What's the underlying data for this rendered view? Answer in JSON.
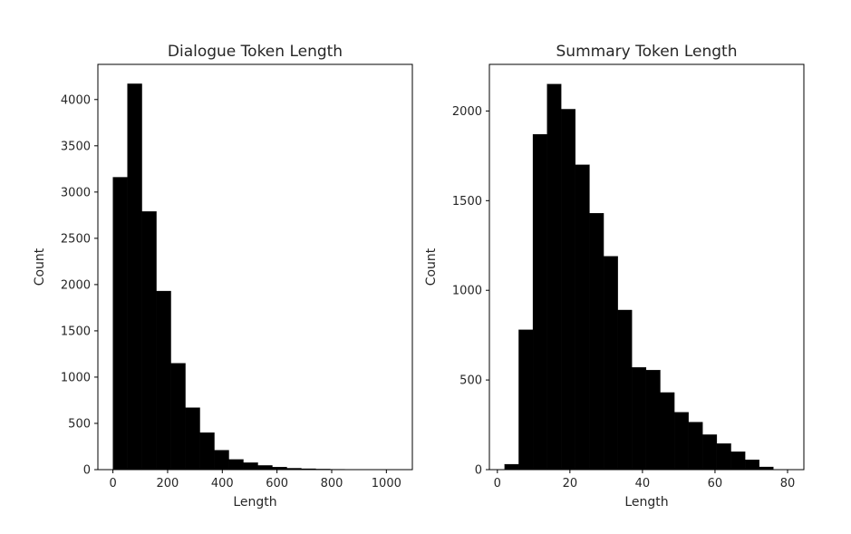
{
  "chart_data": [
    {
      "type": "bar",
      "title": "Dialogue Token Length",
      "xlabel": "Length",
      "ylabel": "Count",
      "xlim": [
        -55,
        1095
      ],
      "ylim": [
        0,
        4380
      ],
      "xticks": [
        0,
        200,
        400,
        600,
        800,
        1000
      ],
      "yticks": [
        0,
        500,
        1000,
        1500,
        2000,
        2500,
        3000,
        3500,
        4000
      ],
      "bin_start": 0,
      "bin_width": 53,
      "values": [
        3160,
        4170,
        2790,
        1930,
        1150,
        670,
        400,
        210,
        110,
        75,
        45,
        28,
        15,
        10,
        6,
        4,
        3,
        2,
        2,
        1
      ],
      "bar_color": "#000000"
    },
    {
      "type": "bar",
      "title": "Summary Token Length",
      "xlabel": "Length",
      "ylabel": "Count",
      "xlim": [
        -2.2,
        84.5
      ],
      "ylim": [
        0,
        2260
      ],
      "xticks": [
        0,
        20,
        40,
        60,
        80
      ],
      "yticks": [
        0,
        500,
        1000,
        1500,
        2000
      ],
      "bin_start": 2,
      "bin_width": 3.9,
      "values": [
        30,
        780,
        1870,
        2150,
        2010,
        1700,
        1430,
        1190,
        890,
        570,
        555,
        430,
        320,
        265,
        195,
        145,
        100,
        55,
        15
      ],
      "bar_color": "#000000"
    }
  ]
}
